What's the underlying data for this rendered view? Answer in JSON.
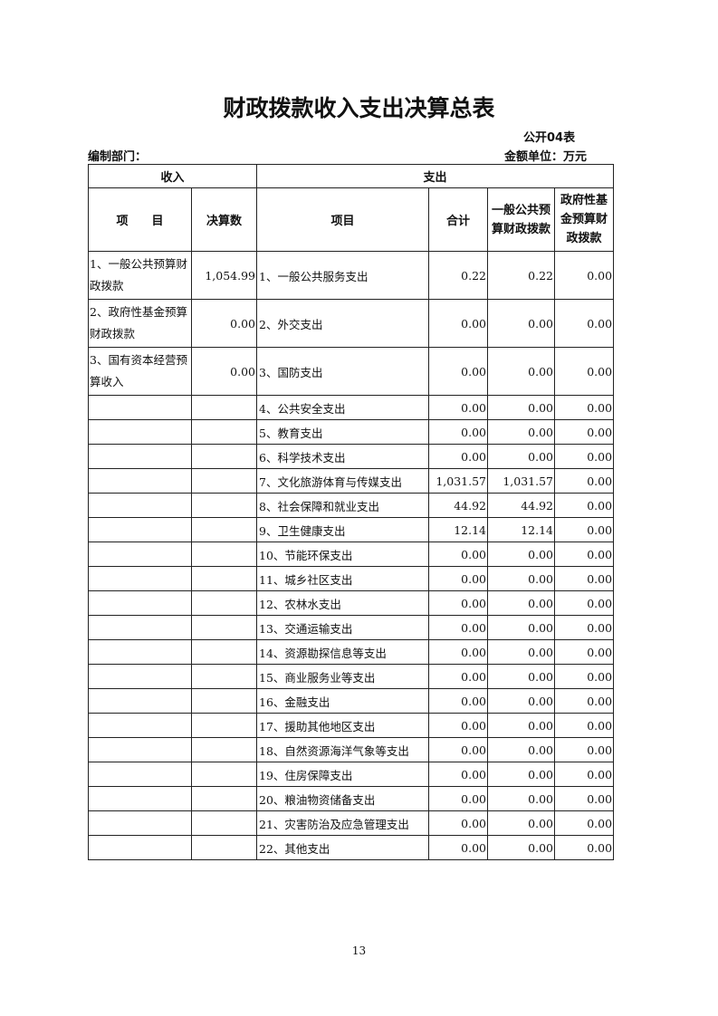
{
  "title": "财政拨款收入支出决算总表",
  "form_no": "公开04表",
  "dept_label": "编制部门：",
  "unit_label": "金额单位：万元",
  "headers": {
    "income": "收入",
    "expense": "支出",
    "item": "项　　目",
    "amount": "决算数",
    "exp_item": "项目",
    "total": "合计",
    "general": "一般公共预算财政拨款",
    "fund": "政府性基金预算财政拨款"
  },
  "income": [
    {
      "label": "1、一般公共预算财政拨款",
      "value": "1,054.99"
    },
    {
      "label": "2、政府性基金预算财政拨款",
      "value": "0.00"
    },
    {
      "label": "3、国有资本经营预算收入",
      "value": "0.00"
    }
  ],
  "expense": [
    [
      "1、一般公共服务支出",
      "0.22",
      "0.22",
      "0.00"
    ],
    [
      "2、外交支出",
      "0.00",
      "0.00",
      "0.00"
    ],
    [
      "3、国防支出",
      "0.00",
      "0.00",
      "0.00"
    ],
    [
      "4、公共安全支出",
      "0.00",
      "0.00",
      "0.00"
    ],
    [
      "5、教育支出",
      "0.00",
      "0.00",
      "0.00"
    ],
    [
      "6、科学技术支出",
      "0.00",
      "0.00",
      "0.00"
    ],
    [
      "7、文化旅游体育与传媒支出",
      "1,031.57",
      "1,031.57",
      "0.00"
    ],
    [
      "8、社会保障和就业支出",
      "44.92",
      "44.92",
      "0.00"
    ],
    [
      "9、卫生健康支出",
      "12.14",
      "12.14",
      "0.00"
    ],
    [
      "10、节能环保支出",
      "0.00",
      "0.00",
      "0.00"
    ],
    [
      "11、城乡社区支出",
      "0.00",
      "0.00",
      "0.00"
    ],
    [
      "12、农林水支出",
      "0.00",
      "0.00",
      "0.00"
    ],
    [
      "13、交通运输支出",
      "0.00",
      "0.00",
      "0.00"
    ],
    [
      "14、资源勘探信息等支出",
      "0.00",
      "0.00",
      "0.00"
    ],
    [
      "15、商业服务业等支出",
      "0.00",
      "0.00",
      "0.00"
    ],
    [
      "16、金融支出",
      "0.00",
      "0.00",
      "0.00"
    ],
    [
      "17、援助其他地区支出",
      "0.00",
      "0.00",
      "0.00"
    ],
    [
      "18、自然资源海洋气象等支出",
      "0.00",
      "0.00",
      "0.00"
    ],
    [
      "19、住房保障支出",
      "0.00",
      "0.00",
      "0.00"
    ],
    [
      "20、粮油物资储备支出",
      "0.00",
      "0.00",
      "0.00"
    ],
    [
      "21、灾害防治及应急管理支出",
      "0.00",
      "0.00",
      "0.00"
    ],
    [
      "22、其他支出",
      "0.00",
      "0.00",
      "0.00"
    ]
  ],
  "page_number": "13"
}
